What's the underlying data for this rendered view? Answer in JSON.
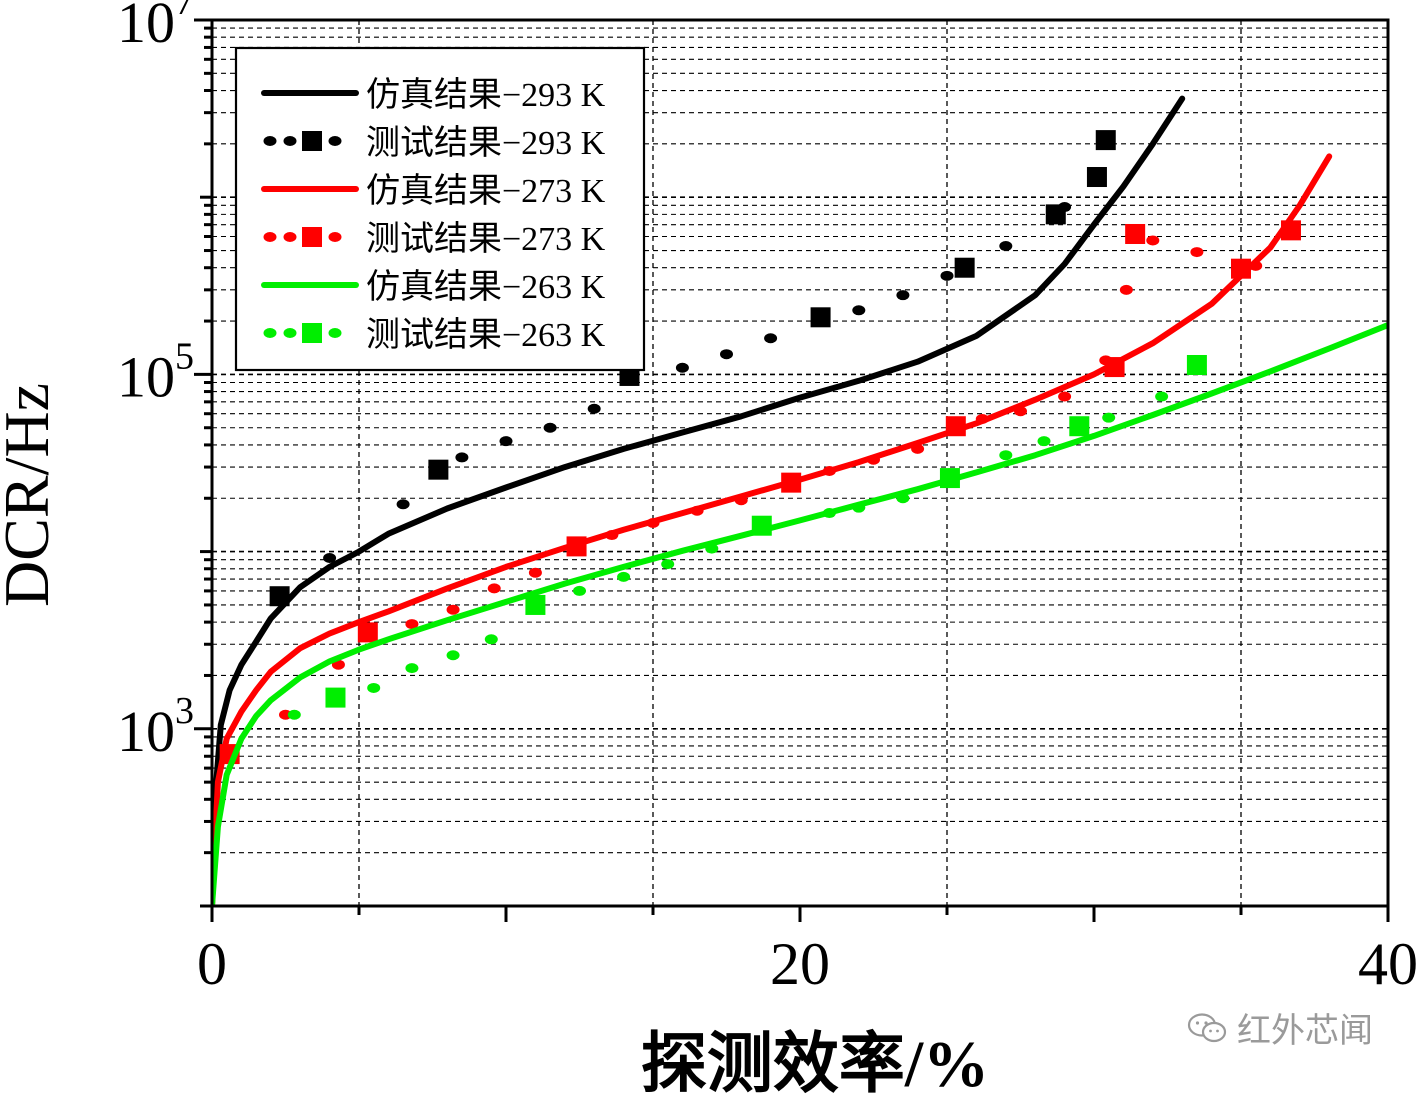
{
  "chart_data": {
    "type": "line",
    "xlabel": "探测效率/%",
    "ylabel": "DCR/Hz",
    "xlim": [
      0,
      40
    ],
    "ylim": [
      100,
      10000000
    ],
    "yscale": "log",
    "x_ticks": [
      0,
      20,
      40
    ],
    "x_tick_labels": [
      "0",
      "20",
      "40"
    ],
    "y_ticks": [
      {
        "value": 1000,
        "base": "10",
        "exp": "3"
      },
      {
        "value": 100000,
        "base": "10",
        "exp": "5"
      },
      {
        "value": 10000000,
        "base": "10",
        "exp": "7"
      }
    ],
    "grid": true,
    "legend": {
      "placement": "top-left",
      "entries": [
        {
          "label": "仿真结果−293 K",
          "color": "#000000",
          "style": "line"
        },
        {
          "label": "测试结果−293 K",
          "color": "#000000",
          "style": "dots-squares"
        },
        {
          "label": "仿真结果−273 K",
          "color": "#ff0000",
          "style": "line"
        },
        {
          "label": "测试结果−273 K",
          "color": "#ff0000",
          "style": "dots-squares"
        },
        {
          "label": "仿真结果−263 K",
          "color": "#00ee00",
          "style": "line"
        },
        {
          "label": "测试结果−263 K",
          "color": "#00ee00",
          "style": "dots-squares"
        }
      ]
    },
    "series": [
      {
        "name": "仿真结果−293 K",
        "kind": "simulation",
        "color": "#000000",
        "x": [
          0,
          0.1,
          0.3,
          0.6,
          1,
          1.5,
          2,
          3,
          4,
          5,
          6,
          8,
          10,
          12,
          14,
          16,
          18,
          20,
          22,
          24,
          26,
          28,
          29,
          30,
          31,
          32,
          33
        ],
        "y": [
          100,
          400,
          1050,
          1650,
          2300,
          3100,
          4200,
          6300,
          8200,
          10000,
          12600,
          17500,
          23000,
          30000,
          38000,
          47000,
          58000,
          74000,
          92000,
          118000,
          165000,
          280000,
          420000,
          700000,
          1150000,
          2000000,
          3600000
        ]
      },
      {
        "name": "测试结果−293 K",
        "kind": "measurement",
        "color": "#000000",
        "squares": {
          "x": [
            2.3,
            7.7,
            14.2,
            20.7,
            25.6,
            28.7,
            30.1,
            30.4
          ],
          "y": [
            5600,
            29000,
            98000,
            210000,
            400000,
            800000,
            1300000,
            2100000
          ]
        },
        "dots": {
          "x": [
            4,
            6.5,
            8.5,
            10,
            11.5,
            13,
            16,
            17.5,
            19,
            22,
            23.5,
            25,
            27,
            29
          ],
          "y": [
            9200,
            18500,
            34000,
            42000,
            50000,
            64000,
            109000,
            130000,
            160000,
            230000,
            280000,
            360000,
            530000,
            880000
          ]
        }
      },
      {
        "name": "仿真结果−273 K",
        "kind": "simulation",
        "color": "#ff0000",
        "x": [
          0,
          0.2,
          0.5,
          1,
          1.5,
          2,
          3,
          4,
          5,
          6,
          8,
          10,
          12,
          14,
          16,
          18,
          20,
          22,
          24,
          26,
          28,
          30,
          32,
          34,
          36,
          37,
          38
        ],
        "y": [
          100,
          500,
          880,
          1250,
          1650,
          2100,
          2850,
          3450,
          4000,
          4600,
          6200,
          8200,
          10500,
          13300,
          16500,
          20500,
          25500,
          32000,
          41000,
          53000,
          72000,
          100000,
          150000,
          250000,
          520000,
          900000,
          1700000
        ]
      },
      {
        "name": "测试结果−273 K",
        "kind": "measurement",
        "color": "#ff0000",
        "squares": {
          "x": [
            0.6,
            5.3,
            12.4,
            19.7,
            25.3,
            30.7,
            31.4,
            35,
            36.7
          ],
          "y": [
            720,
            3500,
            10700,
            24500,
            51000,
            110000,
            620000,
            395000,
            650000
          ]
        },
        "dots": {
          "x": [
            2.5,
            4.3,
            6.8,
            8.2,
            9.6,
            11,
            13.6,
            15,
            16.5,
            18,
            21,
            22.5,
            24,
            26.2,
            27.5,
            29,
            30.4,
            31.1,
            32,
            33.5,
            35.5
          ],
          "y": [
            1200,
            2300,
            3900,
            4700,
            6200,
            7600,
            12400,
            14500,
            17000,
            19500,
            28500,
            33000,
            38000,
            56000,
            62000,
            75000,
            120000,
            300000,
            570000,
            490000,
            410000
          ]
        }
      },
      {
        "name": "仿真结果−263 K",
        "kind": "simulation",
        "color": "#00ee00",
        "x": [
          0,
          0.2,
          0.5,
          1,
          1.5,
          2,
          3,
          4,
          5,
          6,
          8,
          10,
          12,
          14,
          16,
          18,
          20,
          22,
          24,
          26,
          28,
          30,
          32,
          34,
          36,
          38,
          40
        ],
        "y": [
          100,
          280,
          550,
          880,
          1180,
          1450,
          1950,
          2400,
          2800,
          3200,
          4100,
          5200,
          6600,
          8200,
          10100,
          12300,
          15000,
          18400,
          22500,
          28000,
          35000,
          45000,
          59000,
          78000,
          104000,
          140000,
          190000
        ]
      },
      {
        "name": "测试结果−263 K",
        "kind": "measurement",
        "color": "#00ee00",
        "squares": {
          "x": [
            4.2,
            11,
            18.7,
            25.1,
            29.5,
            33.5
          ],
          "y": [
            1500,
            5000,
            14000,
            26000,
            51000,
            113000
          ]
        },
        "dots": {
          "x": [
            2.8,
            5.5,
            6.8,
            8.2,
            9.5,
            12.5,
            14,
            15.5,
            17,
            21,
            22,
            23.5,
            27,
            28.3,
            30.5,
            32.3
          ],
          "y": [
            1200,
            1700,
            2200,
            2600,
            3200,
            6000,
            7200,
            8500,
            10400,
            16500,
            17700,
            20000,
            35000,
            42000,
            57000,
            75000
          ]
        }
      }
    ]
  },
  "watermark": {
    "text": "红外芯闻",
    "icon": "wechat-icon"
  }
}
